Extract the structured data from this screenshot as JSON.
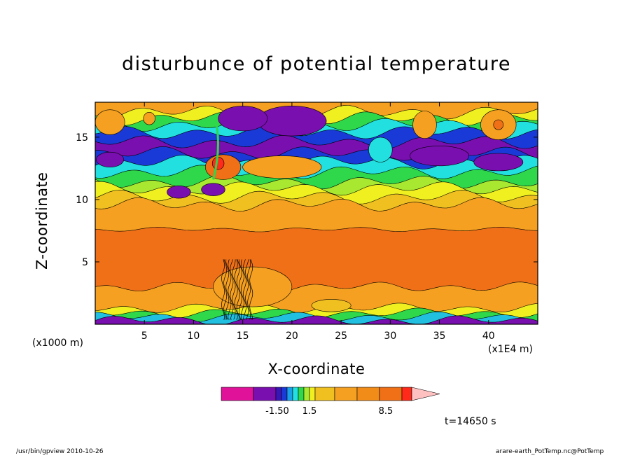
{
  "chart_data": {
    "type": "heatmap",
    "title": "disturbunce of potential temperature",
    "xlabel": "X-coordinate",
    "ylabel": "Z-coordinate",
    "x_unit_label": "(x1000 m)",
    "x_unit_label_right": "(x1E4 m)",
    "xlim": [
      0,
      45
    ],
    "ylim": [
      0,
      17.8
    ],
    "x_ticks": [
      5,
      10,
      15,
      20,
      25,
      30,
      35,
      40
    ],
    "y_ticks": [
      5,
      10,
      15
    ],
    "colorbar": {
      "levels": [
        -1.5,
        1.5,
        8.5
      ],
      "labels": [
        "-1.50",
        "1.5",
        "8.5"
      ],
      "colors": [
        "#e0129a",
        "#7a0fb0",
        "#3a16b8",
        "#1a3ad8",
        "#1aa0e8",
        "#22e0e0",
        "#2ed84a",
        "#a8e830",
        "#f0f020",
        "#f0c020",
        "#f5a020",
        "#f28c18",
        "#f07018",
        "#ff2a1a",
        "#ff8a80",
        "#ffc0c0"
      ]
    },
    "bands": [
      {
        "z_top": 0.3,
        "color": "#7a0fb0"
      },
      {
        "z_top": 0.6,
        "color": "#22c0e0"
      },
      {
        "z_top": 0.9,
        "color": "#2ed84a"
      },
      {
        "z_top": 1.3,
        "color": "#f0f020"
      },
      {
        "z_top": 3.0,
        "color": "#f5a020"
      },
      {
        "z_top": 7.6,
        "color": "#f07018"
      },
      {
        "z_top": 9.6,
        "color": "#f5a020"
      },
      {
        "z_top": 10.2,
        "color": "#f0c020"
      },
      {
        "z_top": 10.9,
        "color": "#f0f020"
      },
      {
        "z_top": 11.4,
        "color": "#a8e830"
      },
      {
        "z_top": 12.2,
        "color": "#2ed84a"
      },
      {
        "z_top": 13.0,
        "color": "#22e0e0"
      },
      {
        "z_top": 13.7,
        "color": "#1a3ad8"
      },
      {
        "z_top": 14.6,
        "color": "#7a0fb0"
      },
      {
        "z_top": 15.4,
        "color": "#1a3ad8"
      },
      {
        "z_top": 16.0,
        "color": "#22e0e0"
      },
      {
        "z_top": 16.5,
        "color": "#2ed84a"
      },
      {
        "z_top": 17.0,
        "color": "#f0f020"
      },
      {
        "z_top": 17.8,
        "color": "#f5a020"
      }
    ],
    "features": [
      {
        "x": 13.0,
        "z": 12.6,
        "rx": 1.8,
        "rz": 1.0,
        "color": "#f07018"
      },
      {
        "x": 12.5,
        "z": 12.9,
        "rx": 0.6,
        "rz": 0.5,
        "color": "#ff2a1a"
      },
      {
        "x": 19.0,
        "z": 12.6,
        "rx": 4.0,
        "rz": 0.9,
        "color": "#f5a020"
      },
      {
        "x": 12.0,
        "z": 10.8,
        "rx": 1.2,
        "rz": 0.5,
        "color": "#7a0fb0"
      },
      {
        "x": 8.5,
        "z": 10.6,
        "rx": 1.2,
        "rz": 0.5,
        "color": "#7a0fb0"
      },
      {
        "x": 20.0,
        "z": 16.3,
        "rx": 3.5,
        "rz": 1.2,
        "color": "#7a0fb0"
      },
      {
        "x": 15.0,
        "z": 16.5,
        "rx": 2.5,
        "rz": 1.0,
        "color": "#7a0fb0"
      },
      {
        "x": 35.0,
        "z": 13.5,
        "rx": 3.0,
        "rz": 0.8,
        "color": "#7a0fb0"
      },
      {
        "x": 41.0,
        "z": 13.0,
        "rx": 2.5,
        "rz": 0.7,
        "color": "#7a0fb0"
      },
      {
        "x": 1.5,
        "z": 13.2,
        "rx": 1.4,
        "rz": 0.6,
        "color": "#7a0fb0"
      },
      {
        "x": 33.5,
        "z": 16.0,
        "rx": 1.2,
        "rz": 1.1,
        "color": "#f5a020"
      },
      {
        "x": 41.0,
        "z": 16.0,
        "rx": 1.8,
        "rz": 1.2,
        "color": "#f5a020"
      },
      {
        "x": 41.0,
        "z": 16.0,
        "rx": 0.5,
        "rz": 0.4,
        "color": "#f07018"
      },
      {
        "x": 1.5,
        "z": 16.2,
        "rx": 1.5,
        "rz": 1.0,
        "color": "#f5a020"
      },
      {
        "x": 5.5,
        "z": 16.5,
        "rx": 0.6,
        "rz": 0.5,
        "color": "#f5a020"
      },
      {
        "x": 29.0,
        "z": 14.0,
        "rx": 1.2,
        "rz": 1.0,
        "color": "#22e0e0"
      },
      {
        "x": 16.0,
        "z": 3.0,
        "rx": 4.0,
        "rz": 1.6,
        "color": "#f5a020"
      },
      {
        "x": 24.0,
        "z": 1.5,
        "rx": 2.0,
        "rz": 0.5,
        "color": "#f0c020"
      }
    ],
    "time_label": "t=14650 s"
  },
  "footer": {
    "left": "/usr/bin/gpview   2010-10-26",
    "right": "arare-earth_PotTemp.nc@PotTemp"
  }
}
